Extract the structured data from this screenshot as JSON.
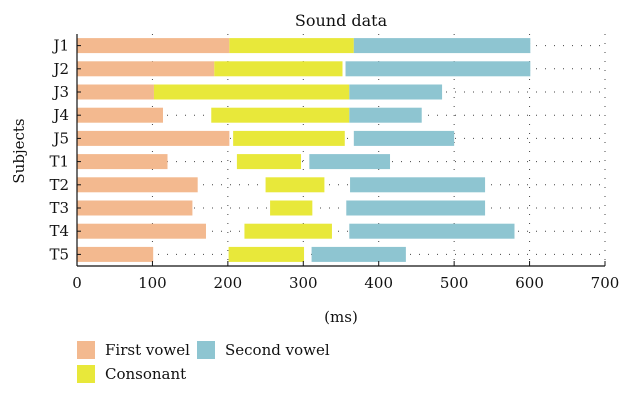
{
  "chart_data": {
    "type": "bar",
    "orientation": "horizontal",
    "stacked": false,
    "title": "Sound data",
    "xlabel": "(ms)",
    "ylabel": "Subjects",
    "xlim": [
      0,
      700
    ],
    "xticks": [
      0,
      100,
      200,
      300,
      400,
      500,
      600,
      700
    ],
    "grid": true,
    "legend": "bottom-left",
    "categories": [
      "J1",
      "J2",
      "J3",
      "J4",
      "J5",
      "T1",
      "T2",
      "T3",
      "T4",
      "T5"
    ],
    "series": [
      {
        "name": "First vowel",
        "color": "#F3B98F",
        "segments": [
          [
            0,
            202
          ],
          [
            0,
            182
          ],
          [
            0,
            102
          ],
          [
            0,
            114
          ],
          [
            0,
            202
          ],
          [
            0,
            120
          ],
          [
            0,
            160
          ],
          [
            0,
            153
          ],
          [
            0,
            171
          ],
          [
            0,
            101
          ]
        ]
      },
      {
        "name": "Consonant",
        "color": "#E8E83A",
        "segments": [
          [
            202,
            367
          ],
          [
            182,
            352
          ],
          [
            102,
            361
          ],
          [
            178,
            361
          ],
          [
            207,
            355
          ],
          [
            212,
            297
          ],
          [
            250,
            328
          ],
          [
            256,
            312
          ],
          [
            222,
            338
          ],
          [
            201,
            301
          ]
        ]
      },
      {
        "name": "Second vowel",
        "color": "#8EC5D1",
        "segments": [
          [
            367,
            601
          ],
          [
            356,
            601
          ],
          [
            361,
            484
          ],
          [
            361,
            457
          ],
          [
            367,
            500
          ],
          [
            308,
            415
          ],
          [
            362,
            541
          ],
          [
            357,
            541
          ],
          [
            361,
            580
          ],
          [
            311,
            436
          ]
        ]
      }
    ]
  }
}
